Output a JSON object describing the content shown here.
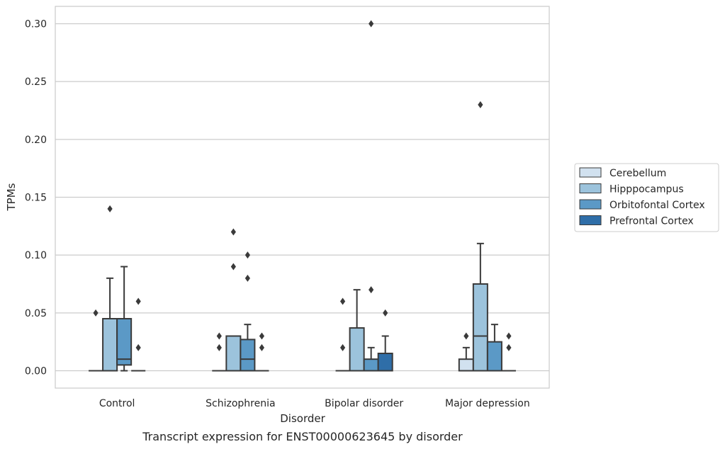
{
  "chart_data": {
    "type": "box",
    "caption": "Transcript expression for ENST00000623645 by disorder",
    "xlabel": "Disorder",
    "ylabel": "TPMs",
    "ylim": [
      -0.015,
      0.315
    ],
    "yticks": [
      0.0,
      0.05,
      0.1,
      0.15,
      0.2,
      0.25,
      0.3
    ],
    "ytick_labels": [
      "0.00",
      "0.05",
      "0.10",
      "0.15",
      "0.20",
      "0.25",
      "0.30"
    ],
    "grid": "horizontal",
    "legend_position": "right",
    "categories": [
      "Control",
      "Schizophrenia",
      "Bipolar disorder",
      "Major depression"
    ],
    "series": [
      {
        "name": "Cerebellum",
        "color": "#d1e1ef",
        "boxes": [
          {
            "q1": 0,
            "median": 0,
            "q3": 0,
            "whisker_low": 0,
            "whisker_high": 0,
            "outliers": [
              0.05
            ]
          },
          {
            "q1": 0,
            "median": 0,
            "q3": 0,
            "whisker_low": 0,
            "whisker_high": 0,
            "outliers": [
              0.02,
              0.03
            ]
          },
          {
            "q1": 0,
            "median": 0,
            "q3": 0,
            "whisker_low": 0,
            "whisker_high": 0,
            "outliers": [
              0.02,
              0.06
            ]
          },
          {
            "q1": 0,
            "median": 0,
            "q3": 0.01,
            "whisker_low": 0,
            "whisker_high": 0.02,
            "outliers": [
              0.03
            ]
          }
        ]
      },
      {
        "name": "Hipppocampus",
        "color": "#9cc3dc",
        "boxes": [
          {
            "q1": 0,
            "median": 0,
            "q3": 0.045,
            "whisker_low": 0,
            "whisker_high": 0.08,
            "outliers": [
              0.14
            ]
          },
          {
            "q1": 0,
            "median": 0,
            "q3": 0.03,
            "whisker_low": 0,
            "whisker_high": 0.03,
            "outliers": [
              0.09,
              0.12
            ]
          },
          {
            "q1": 0,
            "median": 0,
            "q3": 0.037,
            "whisker_low": 0,
            "whisker_high": 0.07,
            "outliers": []
          },
          {
            "q1": 0,
            "median": 0.03,
            "q3": 0.075,
            "whisker_low": 0,
            "whisker_high": 0.11,
            "outliers": [
              0.23
            ]
          }
        ]
      },
      {
        "name": "Orbitofontal Cortex",
        "color": "#5b99c6",
        "boxes": [
          {
            "q1": 0.005,
            "median": 0.01,
            "q3": 0.045,
            "whisker_low": 0,
            "whisker_high": 0.09,
            "outliers": []
          },
          {
            "q1": 0,
            "median": 0.01,
            "q3": 0.027,
            "whisker_low": 0,
            "whisker_high": 0.04,
            "outliers": [
              0.08,
              0.1
            ]
          },
          {
            "q1": 0,
            "median": 0,
            "q3": 0.01,
            "whisker_low": 0,
            "whisker_high": 0.02,
            "outliers": [
              0.07,
              0.3
            ]
          },
          {
            "q1": 0,
            "median": 0,
            "q3": 0.025,
            "whisker_low": 0,
            "whisker_high": 0.04,
            "outliers": []
          }
        ]
      },
      {
        "name": "Prefrontal Cortex",
        "color": "#2f6ea8",
        "boxes": [
          {
            "q1": 0,
            "median": 0,
            "q3": 0,
            "whisker_low": 0,
            "whisker_high": 0,
            "outliers": [
              0.02,
              0.06
            ]
          },
          {
            "q1": 0,
            "median": 0,
            "q3": 0,
            "whisker_low": 0,
            "whisker_high": 0,
            "outliers": [
              0.02,
              0.03
            ]
          },
          {
            "q1": 0,
            "median": 0,
            "q3": 0.015,
            "whisker_low": 0,
            "whisker_high": 0.03,
            "outliers": [
              0.05
            ]
          },
          {
            "q1": 0,
            "median": 0,
            "q3": 0,
            "whisker_low": 0,
            "whisker_high": 0,
            "outliers": [
              0.02,
              0.03
            ]
          }
        ]
      }
    ]
  }
}
